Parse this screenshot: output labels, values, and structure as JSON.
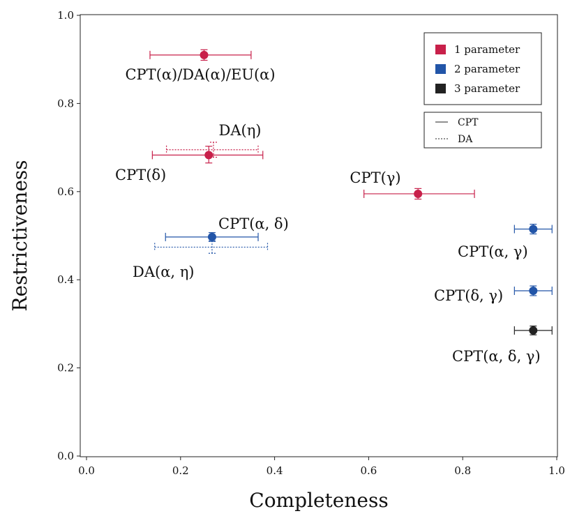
{
  "chart_data": {
    "type": "scatter",
    "title": "",
    "xlabel": "Completeness",
    "ylabel": "Restrictiveness",
    "xlim": [
      0.0,
      1.0
    ],
    "ylim": [
      0.0,
      1.0
    ],
    "xticks": [
      "0.0",
      "0.2",
      "0.4",
      "0.6",
      "0.8",
      "1.0"
    ],
    "yticks": [
      "0.0",
      "0.2",
      "0.4",
      "0.6",
      "0.8",
      "1.0"
    ],
    "grid": false,
    "legend": {
      "placement": "top-right",
      "parameter_entries": [
        {
          "label": "1 parameter",
          "color": "#c8204a"
        },
        {
          "label": "2 parameter",
          "color": "#2255a8"
        },
        {
          "label": "3 parameter",
          "color": "#222222"
        }
      ],
      "style_entries": [
        {
          "label": "CPT",
          "style": "solid"
        },
        {
          "label": "DA",
          "style": "dotted"
        }
      ]
    },
    "points": [
      {
        "label": "CPT(α)/DA(α)/EU(α)",
        "model": "CPT",
        "params": 1,
        "x": 0.25,
        "y": 0.91,
        "xerr": [
          0.135,
          0.35
        ],
        "yerr": [
          0.898,
          0.922
        ],
        "marker": true
      },
      {
        "label": "DA(η)",
        "model": "DA",
        "params": 1,
        "x": 0.27,
        "y": 0.695,
        "xerr": [
          0.17,
          0.365
        ],
        "yerr": [
          0.678,
          0.712
        ],
        "marker": false
      },
      {
        "label": "CPT(δ)",
        "model": "CPT",
        "params": 1,
        "x": 0.26,
        "y": 0.683,
        "xerr": [
          0.14,
          0.375
        ],
        "yerr": [
          0.665,
          0.703
        ],
        "marker": true
      },
      {
        "label": "CPT(γ)",
        "model": "CPT",
        "params": 1,
        "x": 0.705,
        "y": 0.595,
        "xerr": [
          0.59,
          0.825
        ],
        "yerr": [
          0.583,
          0.607
        ],
        "marker": true
      },
      {
        "label": "CPT(α, δ)",
        "model": "CPT",
        "params": 2,
        "x": 0.267,
        "y": 0.497,
        "xerr": [
          0.168,
          0.365
        ],
        "yerr": [
          0.487,
          0.507
        ],
        "marker": true
      },
      {
        "label": "DA(α, η)",
        "model": "DA",
        "params": 2,
        "x": 0.267,
        "y": 0.474,
        "xerr": [
          0.145,
          0.385
        ],
        "yerr": [
          0.46,
          0.488
        ],
        "marker": false
      },
      {
        "label": "CPT(α, γ)",
        "model": "CPT",
        "params": 2,
        "x": 0.95,
        "y": 0.515,
        "xerr": [
          0.91,
          0.99
        ],
        "yerr": [
          0.504,
          0.526
        ],
        "marker": true
      },
      {
        "label": "CPT(δ, γ)",
        "model": "CPT",
        "params": 2,
        "x": 0.95,
        "y": 0.375,
        "xerr": [
          0.91,
          0.99
        ],
        "yerr": [
          0.364,
          0.386
        ],
        "marker": true
      },
      {
        "label": "CPT(α, δ, γ)",
        "model": "CPT",
        "params": 3,
        "x": 0.95,
        "y": 0.285,
        "xerr": [
          0.91,
          0.99
        ],
        "yerr": [
          0.275,
          0.295
        ],
        "marker": true
      }
    ]
  }
}
